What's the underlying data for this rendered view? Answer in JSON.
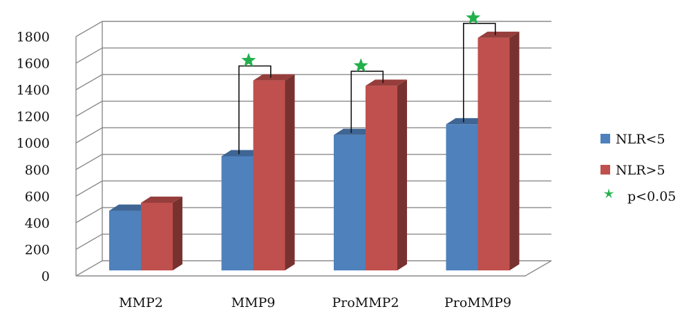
{
  "chart_data": {
    "type": "bar",
    "title": "",
    "xlabel": "",
    "ylabel": "",
    "ylim": [
      0,
      1800
    ],
    "yticks": [
      0,
      200,
      400,
      600,
      800,
      1000,
      1200,
      1400,
      1600,
      1800
    ],
    "categories": [
      "MMP2",
      "MMP9",
      "ProMMP2",
      "ProMMP9"
    ],
    "series": [
      {
        "name": "NLR<5",
        "color": "#4F81BD",
        "values": [
          490,
          900,
          1060,
          1140
        ]
      },
      {
        "name": "NLR>5",
        "color": "#C0504D",
        "values": [
          550,
          1470,
          1430,
          1790
        ]
      }
    ],
    "significance": {
      "marker": "green-star-icon",
      "marker_color": "#22B04B",
      "label": "p<0.05",
      "categories": [
        "MMP9",
        "ProMMP2",
        "ProMMP9"
      ]
    },
    "grid": true,
    "style": "3d-clustered-column",
    "legend_position": "right"
  }
}
